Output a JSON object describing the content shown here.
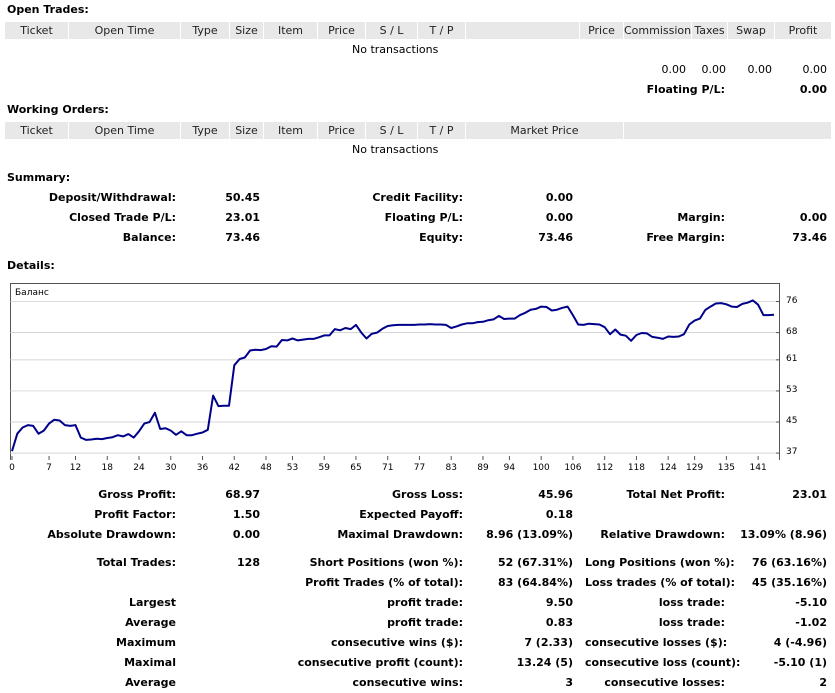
{
  "sections": {
    "open_trades": "Open Trades:",
    "working_orders": "Working Orders:",
    "summary": "Summary:",
    "details": "Details:"
  },
  "open_trades": {
    "columns": [
      "Ticket",
      "Open Time",
      "Type",
      "Size",
      "Item",
      "Price",
      "S / L",
      "T / P",
      "",
      "Price",
      "Commission",
      "Taxes",
      "Swap",
      "Profit"
    ],
    "empty": "No transactions",
    "totals": {
      "commission": "0.00",
      "taxes": "0.00",
      "swap": "0.00",
      "profit": "0.00"
    },
    "floating_label": "Floating P/L:",
    "floating_value": "0.00"
  },
  "working_orders": {
    "columns": [
      "Ticket",
      "Open Time",
      "Type",
      "Size",
      "Item",
      "Price",
      "S / L",
      "T / P",
      "Market Price",
      ""
    ],
    "empty": "No transactions"
  },
  "summary": {
    "deposit_label": "Deposit/Withdrawal:",
    "deposit": "50.45",
    "credit_label": "Credit Facility:",
    "credit": "0.00",
    "closed_label": "Closed Trade P/L:",
    "closed": "23.01",
    "floating_label": "Floating P/L:",
    "floating": "0.00",
    "margin_label": "Margin:",
    "margin": "0.00",
    "balance_label": "Balance:",
    "balance": "73.46",
    "equity_label": "Equity:",
    "equity": "73.46",
    "free_margin_label": "Free Margin:",
    "free_margin": "73.46"
  },
  "chart_data": {
    "type": "line",
    "legend": "Баланс",
    "x_ticks": [
      "0",
      "7",
      "12",
      "18",
      "24",
      "30",
      "36",
      "42",
      "48",
      "53",
      "59",
      "65",
      "71",
      "77",
      "83",
      "89",
      "94",
      "100",
      "106",
      "112",
      "118",
      "124",
      "129",
      "135",
      "141"
    ],
    "y_ticks": [
      "76",
      "68",
      "61",
      "53",
      "45",
      "37"
    ],
    "xlim": [
      0,
      144
    ],
    "ylim": [
      36,
      80
    ],
    "color": "#00008b",
    "series": [
      {
        "values": [
          [
            0,
            37.5
          ],
          [
            1,
            42
          ],
          [
            2,
            43.6
          ],
          [
            3,
            44.2
          ],
          [
            4,
            44
          ],
          [
            5,
            42
          ],
          [
            6,
            42.8
          ],
          [
            7,
            44.6
          ],
          [
            8,
            45.6
          ],
          [
            9,
            45.4
          ],
          [
            10,
            44.2
          ],
          [
            11,
            44
          ],
          [
            12,
            44.2
          ],
          [
            13,
            41
          ],
          [
            14,
            40.4
          ],
          [
            15,
            40.5
          ],
          [
            16,
            40.7
          ],
          [
            17,
            40.6
          ],
          [
            18,
            40.9
          ],
          [
            19,
            41.1
          ],
          [
            20,
            41.6
          ],
          [
            21,
            41.3
          ],
          [
            22,
            41.9
          ],
          [
            23,
            41
          ],
          [
            24,
            42.6
          ],
          [
            25,
            44.6
          ],
          [
            26,
            45
          ],
          [
            27,
            47.4
          ],
          [
            28,
            43.2
          ],
          [
            29,
            43.4
          ],
          [
            30,
            42.8
          ],
          [
            31,
            41.7
          ],
          [
            32,
            42.6
          ],
          [
            33,
            41.6
          ],
          [
            34,
            41.6
          ],
          [
            35,
            42
          ],
          [
            36,
            42.3
          ],
          [
            37,
            43
          ],
          [
            38,
            51.8
          ],
          [
            39,
            49.1
          ],
          [
            40,
            49.2
          ],
          [
            41,
            49.2
          ],
          [
            42,
            59.6
          ],
          [
            43,
            61.2
          ],
          [
            44,
            61.6
          ],
          [
            45,
            63.4
          ],
          [
            46,
            63.6
          ],
          [
            47,
            63.5
          ],
          [
            48,
            63.8
          ],
          [
            49,
            64.5
          ],
          [
            50,
            64.4
          ],
          [
            51,
            66.1
          ],
          [
            52,
            66
          ],
          [
            53,
            66.5
          ],
          [
            54,
            66
          ],
          [
            55,
            66.2
          ],
          [
            56,
            66.4
          ],
          [
            57,
            66.4
          ],
          [
            58,
            66.8
          ],
          [
            59,
            67.3
          ],
          [
            60,
            67.3
          ],
          [
            61,
            68.9
          ],
          [
            62,
            68.6
          ],
          [
            63,
            69.2
          ],
          [
            64,
            68.9
          ],
          [
            65,
            70
          ],
          [
            66,
            68
          ],
          [
            67,
            66.5
          ],
          [
            68,
            67.7
          ],
          [
            69,
            68
          ],
          [
            70,
            69
          ],
          [
            71,
            69.7
          ],
          [
            72,
            69.9
          ],
          [
            73,
            70
          ],
          [
            74,
            70
          ],
          [
            75,
            70
          ],
          [
            76,
            70
          ],
          [
            77,
            70.1
          ],
          [
            78,
            70.1
          ],
          [
            79,
            70.2
          ],
          [
            80,
            70.1
          ],
          [
            81,
            70.1
          ],
          [
            82,
            70
          ],
          [
            83,
            69.2
          ],
          [
            84,
            69.6
          ],
          [
            85,
            70.1
          ],
          [
            86,
            70.4
          ],
          [
            87,
            70.4
          ],
          [
            88,
            70.7
          ],
          [
            89,
            70.8
          ],
          [
            90,
            71.2
          ],
          [
            91,
            71.4
          ],
          [
            92,
            72.3
          ],
          [
            93,
            71.5
          ],
          [
            94,
            71.6
          ],
          [
            95,
            71.6
          ],
          [
            96,
            72.5
          ],
          [
            97,
            73.1
          ],
          [
            98,
            73.9
          ],
          [
            99,
            74.1
          ],
          [
            100,
            74.7
          ],
          [
            101,
            74.6
          ],
          [
            102,
            73.7
          ],
          [
            103,
            73.9
          ],
          [
            104,
            74.4
          ],
          [
            105,
            74.7
          ],
          [
            106,
            72.5
          ],
          [
            107,
            70.1
          ],
          [
            108,
            70
          ],
          [
            109,
            70.3
          ],
          [
            110,
            70.2
          ],
          [
            111,
            70.1
          ],
          [
            112,
            69.4
          ],
          [
            113,
            67.6
          ],
          [
            114,
            68.8
          ],
          [
            115,
            67.5
          ],
          [
            116,
            67.2
          ],
          [
            117,
            65.9
          ],
          [
            118,
            67.4
          ],
          [
            119,
            67.9
          ],
          [
            120,
            67.8
          ],
          [
            121,
            66.9
          ],
          [
            122,
            66.7
          ],
          [
            123,
            66.4
          ],
          [
            124,
            67
          ],
          [
            125,
            66.9
          ],
          [
            126,
            67
          ],
          [
            127,
            67.6
          ],
          [
            128,
            70.1
          ],
          [
            129,
            71.1
          ],
          [
            130,
            71.6
          ],
          [
            131,
            73.8
          ],
          [
            132,
            74.7
          ],
          [
            133,
            75.5
          ],
          [
            134,
            75.6
          ],
          [
            135,
            75.3
          ],
          [
            136,
            74.7
          ],
          [
            137,
            74.6
          ],
          [
            138,
            75.4
          ],
          [
            139,
            75.7
          ],
          [
            140,
            76.3
          ],
          [
            141,
            75.2
          ],
          [
            142,
            72.5
          ],
          [
            143,
            72.5
          ],
          [
            144,
            72.6
          ]
        ]
      }
    ]
  },
  "details": {
    "rows": [
      [
        "Gross Profit:",
        "68.97",
        "Gross Loss:",
        "45.96",
        "Total Net Profit:",
        "23.01"
      ],
      [
        "Profit Factor:",
        "1.50",
        "Expected Payoff:",
        "0.18",
        "",
        ""
      ],
      [
        "Absolute Drawdown:",
        "0.00",
        "Maximal Drawdown:",
        "8.96 (13.09%)",
        "Relative Drawdown:",
        "13.09% (8.96)"
      ],
      [
        "",
        "",
        "",
        "",
        "",
        ""
      ],
      [
        "Total Trades:",
        "128",
        "Short Positions (won %):",
        "52 (67.31%)",
        "Long Positions (won %):",
        "76 (63.16%)"
      ],
      [
        "",
        "",
        "Profit Trades (% of total):",
        "83 (64.84%)",
        "Loss trades (% of total):",
        "45 (35.16%)"
      ],
      [
        "Largest",
        "",
        "profit trade:",
        "9.50",
        "loss trade:",
        "-5.10"
      ],
      [
        "Average",
        "",
        "profit trade:",
        "0.83",
        "loss trade:",
        "-1.02"
      ],
      [
        "Maximum",
        "",
        "consecutive wins ($):",
        "7 (2.33)",
        "consecutive losses ($):",
        "4 (-4.96)"
      ],
      [
        "Maximal",
        "",
        "consecutive profit (count):",
        "13.24 (5)",
        "consecutive loss (count):",
        "-5.10 (1)"
      ],
      [
        "Average",
        "",
        "consecutive wins:",
        "3",
        "consecutive losses:",
        "2"
      ]
    ]
  }
}
